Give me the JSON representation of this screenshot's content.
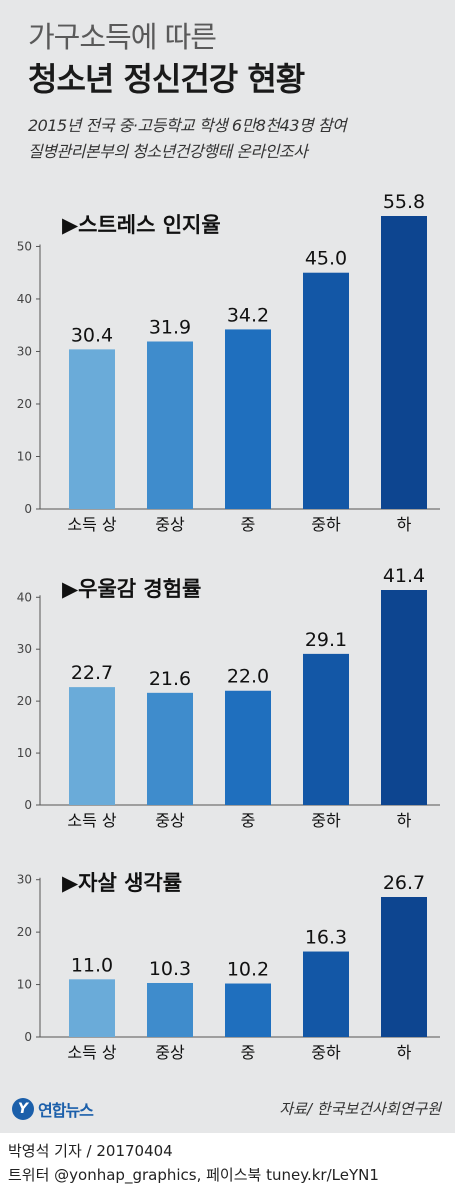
{
  "header": {
    "title_line1": "가구소득에 따른",
    "title_line2": "청소년 정신건강 현황",
    "subtitle_line1": "2015년 전국 중·고등학교 학생 6만8천43명 참여",
    "subtitle_line2": "질병관리본부의 청소년건강행태 온라인조사"
  },
  "colors": {
    "bars": [
      "#6aabd9",
      "#3f8ccc",
      "#1f6fbe",
      "#1357a6",
      "#0d4590"
    ],
    "background": "#e6e7e8"
  },
  "chart_data": [
    {
      "type": "bar",
      "title": "▶스트레스 인지율",
      "categories": [
        "소득 상",
        "중상",
        "중",
        "중하",
        "하"
      ],
      "values": [
        30.4,
        31.9,
        34.2,
        45.0,
        55.8
      ],
      "value_labels": [
        "30.4",
        "31.9",
        "34.2",
        "45.0",
        "55.8"
      ],
      "yticks": [
        0,
        10,
        20,
        30,
        40,
        50
      ],
      "ylim": [
        0,
        55.8
      ],
      "grid": false
    },
    {
      "type": "bar",
      "title": "▶우울감 경험률",
      "categories": [
        "소득 상",
        "중상",
        "중",
        "중하",
        "하"
      ],
      "values": [
        22.7,
        21.6,
        22.0,
        29.1,
        41.4
      ],
      "value_labels": [
        "22.7",
        "21.6",
        "22.0",
        "29.1",
        "41.4"
      ],
      "yticks": [
        0,
        10,
        20,
        30,
        40
      ],
      "ylim": [
        0,
        41.4
      ],
      "grid": false
    },
    {
      "type": "bar",
      "title": "▶자살 생각률",
      "categories": [
        "소득 상",
        "중상",
        "중",
        "중하",
        "하"
      ],
      "values": [
        11.0,
        10.3,
        10.2,
        16.3,
        26.7
      ],
      "value_labels": [
        "11.0",
        "10.3",
        "10.2",
        "16.3",
        "26.7"
      ],
      "yticks": [
        0,
        10,
        20,
        30
      ],
      "ylim": [
        0,
        26.7
      ],
      "grid": false
    }
  ],
  "footer": {
    "logo_mark": "Y",
    "logo_text": "연합뉴스",
    "source": "자료/ 한국보건사회연구원",
    "reporter": "박영석 기자 / 20170404",
    "social": "트위터 @yonhap_graphics, 페이스북 tuney.kr/LeYN1"
  }
}
